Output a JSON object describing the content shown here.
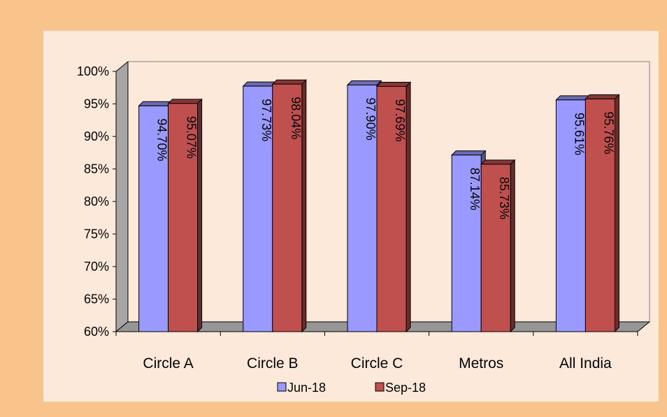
{
  "chart_data": {
    "type": "bar",
    "title": "",
    "xlabel": "",
    "ylabel": "",
    "categories": [
      "Circle A",
      "Circle B",
      "Circle C",
      "Metros",
      "All India"
    ],
    "series": [
      {
        "name": "Jun-18",
        "values": [
          94.7,
          97.73,
          97.9,
          87.14,
          95.61
        ],
        "labels": [
          "94.70%",
          "97.73%",
          "97.90%",
          "87.14%",
          "95.61%"
        ],
        "color": "#9999ff"
      },
      {
        "name": "Sep-18",
        "values": [
          95.07,
          98.04,
          97.69,
          85.73,
          95.76
        ],
        "labels": [
          "95.07%",
          "98.04%",
          "97.69%",
          "85.73%",
          "95.76%"
        ],
        "color": "#c0504d"
      }
    ],
    "ylim": [
      60,
      100
    ],
    "yticks": [
      "60%",
      "65%",
      "70%",
      "75%",
      "80%",
      "85%",
      "90%",
      "95%",
      "100%"
    ],
    "legend_position": "bottom",
    "grid": false,
    "style": "3d-clustered-column"
  },
  "colors": {
    "border": "#f9c48c",
    "plot_background": "#fde9d9",
    "wall_left": "#a6a6a6",
    "floor": "#969696"
  }
}
